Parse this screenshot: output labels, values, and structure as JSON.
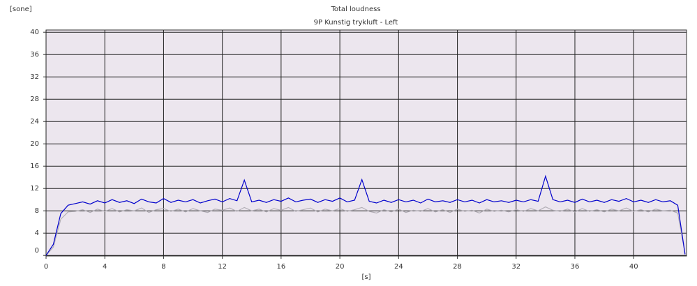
{
  "chart_data": {
    "type": "line",
    "title": "Total loudness",
    "subtitle": "9P Kunstig trykluft - Left",
    "x_label": "[s]",
    "y_label": "[sone]",
    "x": [
      0,
      0.5,
      1,
      1.5,
      2,
      2.5,
      3,
      3.5,
      4,
      4.5,
      5,
      5.5,
      6,
      6.5,
      7,
      7.5,
      8,
      8.5,
      9,
      9.5,
      10,
      10.5,
      11,
      11.5,
      12,
      12.5,
      13,
      13.5,
      14,
      14.5,
      15,
      15.5,
      16,
      16.5,
      17,
      17.5,
      18,
      18.5,
      19,
      19.5,
      20,
      20.5,
      21,
      21.5,
      22,
      22.5,
      23,
      23.5,
      24,
      24.5,
      25,
      25.5,
      26,
      26.5,
      27,
      27.5,
      28,
      28.5,
      29,
      29.5,
      30,
      30.5,
      31,
      31.5,
      32,
      32.5,
      33,
      33.5,
      34,
      34.5,
      35,
      35.5,
      36,
      36.5,
      37,
      37.5,
      38,
      38.5,
      39,
      39.5,
      40,
      40.5,
      41,
      41.5,
      42,
      42.5,
      43,
      43.5
    ],
    "series": [
      {
        "color": "#b4b0b8",
        "values": [
          0,
          1.5,
          6.5,
          7.8,
          7.9,
          8.2,
          7.7,
          8.3,
          7.9,
          8.4,
          7.8,
          8.2,
          8.0,
          8.5,
          7.7,
          8.2,
          8.4,
          7.9,
          8.3,
          7.8,
          8.4,
          8.0,
          7.7,
          8.3,
          8.1,
          8.5,
          7.9,
          8.6,
          8.0,
          8.3,
          7.8,
          8.4,
          8.1,
          8.6,
          7.9,
          8.2,
          8.5,
          7.8,
          8.3,
          8.0,
          8.4,
          7.9,
          8.2,
          8.6,
          7.9,
          7.6,
          8.2,
          7.8,
          8.3,
          7.7,
          8.1,
          7.9,
          8.4,
          7.8,
          8.2,
          7.7,
          8.3,
          7.9,
          8.1,
          7.6,
          8.3,
          7.9,
          8.1,
          7.8,
          8.2,
          7.9,
          8.4,
          8.0,
          8.7,
          8.1,
          7.9,
          8.3,
          7.8,
          8.4,
          7.9,
          8.2,
          7.8,
          8.3,
          8.0,
          8.5,
          7.9,
          8.2,
          7.8,
          8.3,
          8.0,
          8.1,
          7.6,
          0.3
        ]
      },
      {
        "color": "#0000cc",
        "values": [
          0,
          2,
          7.5,
          9,
          9.3,
          9.6,
          9.2,
          9.8,
          9.4,
          10,
          9.5,
          9.8,
          9.3,
          10.1,
          9.6,
          9.4,
          10.2,
          9.5,
          9.9,
          9.6,
          10,
          9.4,
          9.8,
          10.1,
          9.6,
          10.2,
          9.8,
          13.5,
          9.6,
          9.9,
          9.5,
          10,
          9.7,
          10.3,
          9.6,
          9.9,
          10.1,
          9.5,
          10,
          9.7,
          10.3,
          9.6,
          9.9,
          13.6,
          9.7,
          9.4,
          9.9,
          9.5,
          10,
          9.6,
          9.9,
          9.4,
          10.1,
          9.6,
          9.8,
          9.5,
          10,
          9.6,
          9.9,
          9.4,
          10,
          9.6,
          9.8,
          9.5,
          9.9,
          9.6,
          10,
          9.7,
          14.2,
          10,
          9.6,
          9.9,
          9.5,
          10.1,
          9.6,
          9.9,
          9.5,
          10,
          9.7,
          10.2,
          9.6,
          9.9,
          9.5,
          10,
          9.6,
          9.8,
          9,
          0.2
        ]
      }
    ],
    "xlim": [
      0,
      43.6
    ],
    "ylim": [
      -0.1,
      40.4
    ],
    "xticks": [
      0,
      4,
      8,
      12,
      16,
      20,
      24,
      28,
      32,
      36,
      40
    ],
    "yticks": [
      0,
      4,
      8,
      12,
      16,
      20,
      24,
      28,
      32,
      36,
      40
    ],
    "grid": true
  }
}
